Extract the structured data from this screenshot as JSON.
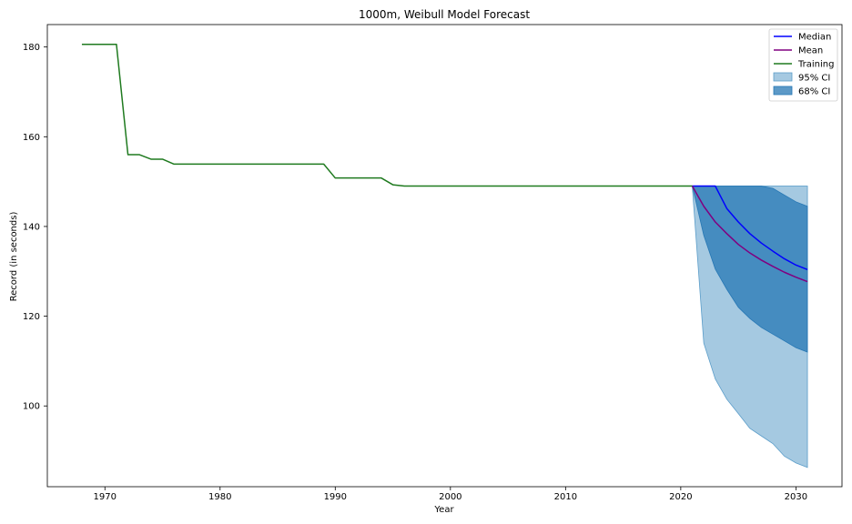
{
  "chart_data": {
    "type": "line",
    "title": "1000m, Weibull Model Forecast",
    "xlabel": "Year",
    "ylabel": "Record (in seconds)",
    "xlim": [
      1965,
      2034
    ],
    "ylim": [
      82,
      185
    ],
    "xticks": [
      1970,
      1980,
      1990,
      2000,
      2010,
      2020,
      2030
    ],
    "yticks": [
      100,
      120,
      140,
      160,
      180
    ],
    "grid": false,
    "legend_position": "top-right",
    "series": [
      {
        "name": "Training",
        "color": "#1f7a1f",
        "x": [
          1968,
          1971,
          1972,
          1973,
          1974,
          1975,
          1976,
          1989,
          1990,
          1994,
          1995,
          1996,
          2021
        ],
        "y": [
          180.6,
          180.6,
          156.0,
          156.0,
          155.0,
          155.0,
          153.9,
          153.9,
          150.8,
          150.8,
          149.3,
          149.0,
          149.0
        ]
      },
      {
        "name": "Median",
        "color": "#0000ff",
        "x": [
          2021,
          2022,
          2023,
          2024,
          2025,
          2026,
          2027,
          2028,
          2029,
          2030,
          2031
        ],
        "y": [
          149.0,
          149.0,
          149.0,
          144.0,
          141.0,
          138.4,
          136.3,
          134.5,
          132.8,
          131.4,
          130.4
        ]
      },
      {
        "name": "Mean",
        "color": "#800080",
        "x": [
          2021,
          2022,
          2023,
          2024,
          2025,
          2026,
          2027,
          2028,
          2029,
          2030,
          2031
        ],
        "y": [
          149.0,
          144.5,
          141.0,
          138.4,
          136.0,
          134.1,
          132.5,
          131.1,
          129.8,
          128.7,
          127.7
        ]
      }
    ],
    "bands": [
      {
        "name": "95% CI",
        "color": "#5b9dc9",
        "opacity": 0.55,
        "x": [
          2021,
          2022,
          2023,
          2024,
          2025,
          2026,
          2027,
          2028,
          2029,
          2030,
          2031
        ],
        "lower": [
          149.0,
          114.0,
          106.0,
          101.5,
          98.3,
          95.0,
          93.3,
          91.6,
          88.8,
          87.3,
          86.3
        ],
        "upper": [
          149.0,
          149.0,
          149.0,
          149.0,
          149.0,
          149.0,
          149.0,
          149.0,
          149.0,
          149.0,
          149.0
        ]
      },
      {
        "name": "68% CI",
        "color": "#2677b4",
        "opacity": 0.75,
        "x": [
          2021,
          2022,
          2023,
          2024,
          2025,
          2026,
          2027,
          2028,
          2029,
          2030,
          2031
        ],
        "lower": [
          149.0,
          138.0,
          130.5,
          126.0,
          122.0,
          119.5,
          117.5,
          116.0,
          114.5,
          113.0,
          112.0
        ],
        "upper": [
          149.0,
          149.0,
          149.0,
          149.0,
          149.0,
          149.0,
          149.0,
          148.5,
          147.0,
          145.5,
          144.5
        ]
      }
    ],
    "legend": [
      "Median",
      "Mean",
      "Training",
      "95% CI",
      "68% CI"
    ]
  }
}
